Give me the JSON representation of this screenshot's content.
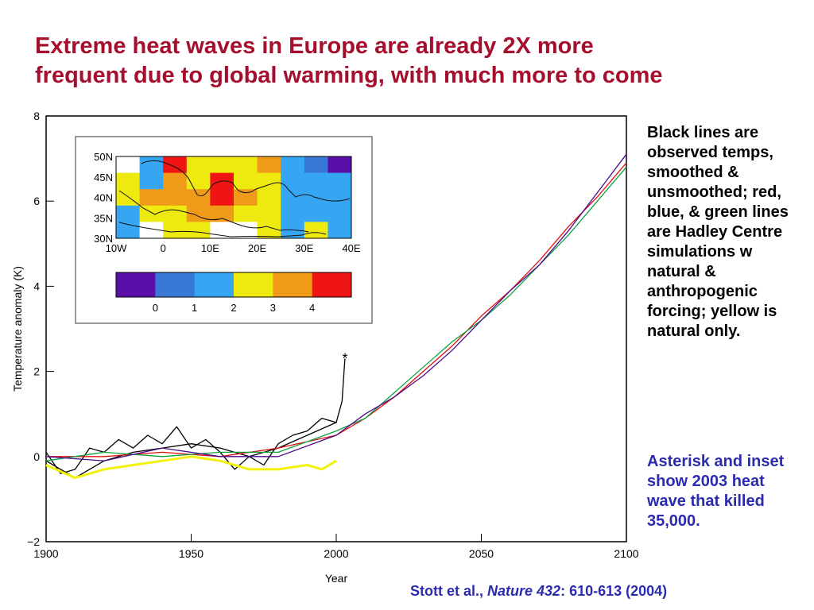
{
  "title": "Extreme heat waves in Europe are already 2X more\nfrequent due to global warming, with much more to come",
  "notes": {
    "observed": "Black lines are observed temps, smoothed & unsmoothed; red, blue, & green lines are Hadley Centre simulations w natural & anthropogenic forcing;  yellow is natural only.",
    "heatwave": "Asterisk and inset show 2003 heat wave that killed 35,000."
  },
  "citation": {
    "authors": "Stott et al., ",
    "journal": "Nature 432",
    "pages": ": 610-613 (2004)"
  },
  "colors": {
    "title": "#a50f2d",
    "note_blue": "#2b2bb0",
    "observed": "#000000",
    "sim_red": "#e01010",
    "sim_blue": "#3a3ab0",
    "sim_green": "#10a040",
    "sim_purple": "#4b0b8a",
    "sim_lightblue": "#3a9be0",
    "natural_only": "#f2f20a"
  },
  "chart_data": {
    "type": "line",
    "xlabel": "Year",
    "ylabel": "Temperature anomaly (K)",
    "xlim": [
      1900,
      2100
    ],
    "ylim": [
      -2,
      8
    ],
    "xticks": [
      1900,
      1950,
      2000,
      2050,
      2100
    ],
    "yticks": [
      -2,
      0,
      2,
      4,
      6,
      8
    ],
    "series": [
      {
        "color": "#000000",
        "points": [
          [
            1900,
            0.1
          ],
          [
            1905,
            -0.4
          ],
          [
            1910,
            -0.3
          ],
          [
            1915,
            0.2
          ],
          [
            1920,
            0.1
          ],
          [
            1925,
            0.4
          ],
          [
            1930,
            0.2
          ],
          [
            1935,
            0.5
          ],
          [
            1940,
            0.3
          ],
          [
            1945,
            0.7
          ],
          [
            1950,
            0.2
          ],
          [
            1955,
            0.4
          ],
          [
            1960,
            0.1
          ],
          [
            1965,
            -0.3
          ],
          [
            1970,
            0.0
          ],
          [
            1975,
            -0.2
          ],
          [
            1980,
            0.3
          ],
          [
            1985,
            0.5
          ],
          [
            1990,
            0.6
          ],
          [
            1995,
            0.9
          ],
          [
            2000,
            0.8
          ],
          [
            2002,
            1.3
          ],
          [
            2003,
            2.3
          ]
        ]
      },
      {
        "color": "#000000",
        "points": [
          [
            1900,
            -0.1
          ],
          [
            1910,
            -0.5
          ],
          [
            1920,
            -0.1
          ],
          [
            1930,
            0.1
          ],
          [
            1940,
            0.2
          ],
          [
            1950,
            0.3
          ],
          [
            1960,
            0.2
          ],
          [
            1970,
            0.0
          ],
          [
            1980,
            0.2
          ],
          [
            1990,
            0.5
          ],
          [
            2000,
            0.8
          ]
        ]
      },
      {
        "color": "#e01010",
        "points": [
          [
            1900,
            0.0
          ],
          [
            1920,
            0.0
          ],
          [
            1940,
            0.1
          ],
          [
            1960,
            0.0
          ],
          [
            1980,
            0.2
          ],
          [
            2000,
            0.5
          ],
          [
            2010,
            0.9
          ],
          [
            2020,
            1.4
          ],
          [
            2030,
            2.0
          ],
          [
            2040,
            2.6
          ],
          [
            2050,
            3.3
          ],
          [
            2060,
            3.9
          ],
          [
            2070,
            4.6
          ],
          [
            2080,
            5.4
          ],
          [
            2090,
            6.1
          ],
          [
            2100,
            6.9
          ]
        ]
      },
      {
        "color": "#10a040",
        "points": [
          [
            1900,
            -0.1
          ],
          [
            1920,
            0.1
          ],
          [
            1940,
            0.0
          ],
          [
            1960,
            0.1
          ],
          [
            1980,
            0.1
          ],
          [
            2000,
            0.6
          ],
          [
            2010,
            0.9
          ],
          [
            2020,
            1.5
          ],
          [
            2030,
            2.1
          ],
          [
            2040,
            2.7
          ],
          [
            2050,
            3.2
          ],
          [
            2060,
            3.8
          ],
          [
            2070,
            4.5
          ],
          [
            2080,
            5.2
          ],
          [
            2090,
            6.0
          ],
          [
            2100,
            6.8
          ]
        ]
      },
      {
        "color": "#4b0b8a",
        "points": [
          [
            1900,
            0.0
          ],
          [
            1920,
            -0.1
          ],
          [
            1940,
            0.2
          ],
          [
            1960,
            0.0
          ],
          [
            1980,
            0.0
          ],
          [
            2000,
            0.5
          ],
          [
            2010,
            1.0
          ],
          [
            2020,
            1.4
          ],
          [
            2030,
            1.9
          ],
          [
            2040,
            2.5
          ],
          [
            2050,
            3.2
          ],
          [
            2060,
            3.9
          ],
          [
            2070,
            4.5
          ],
          [
            2080,
            5.3
          ],
          [
            2090,
            6.2
          ],
          [
            2100,
            7.1
          ]
        ]
      },
      {
        "color": "#f2f20a",
        "points": [
          [
            1900,
            -0.2
          ],
          [
            1910,
            -0.5
          ],
          [
            1920,
            -0.3
          ],
          [
            1930,
            -0.2
          ],
          [
            1940,
            -0.1
          ],
          [
            1950,
            0.0
          ],
          [
            1960,
            -0.1
          ],
          [
            1970,
            -0.3
          ],
          [
            1980,
            -0.3
          ],
          [
            1990,
            -0.2
          ],
          [
            1995,
            -0.3
          ],
          [
            2000,
            -0.1
          ]
        ]
      }
    ],
    "highlight": {
      "year": 2003,
      "value": 2.3,
      "marker": "asterisk"
    },
    "inset_map": {
      "lat_labels": [
        "50N",
        "45N",
        "40N",
        "35N",
        "30N"
      ],
      "lon_labels": [
        "10W",
        "0",
        "10E",
        "20E",
        "30E",
        "40E"
      ],
      "grid": [
        [
          -1,
          2,
          5,
          3,
          3,
          3,
          4,
          2,
          1,
          0
        ],
        [
          3,
          2,
          4,
          3,
          5,
          3,
          3,
          2,
          2,
          2
        ],
        [
          3,
          4,
          4,
          4,
          5,
          4,
          3,
          2,
          2,
          2
        ],
        [
          2,
          3,
          3,
          4,
          4,
          3,
          3,
          2,
          2,
          2
        ],
        [
          2,
          -1,
          3,
          3,
          -1,
          -1,
          3,
          2,
          3,
          2
        ]
      ],
      "colorbar": {
        "colors": [
          "#5a0fa8",
          "#3a78d8",
          "#36a6f2",
          "#eeea10",
          "#f09a1a",
          "#ef1515"
        ],
        "labels": [
          "0",
          "1",
          "2",
          "3",
          "4"
        ]
      }
    }
  }
}
